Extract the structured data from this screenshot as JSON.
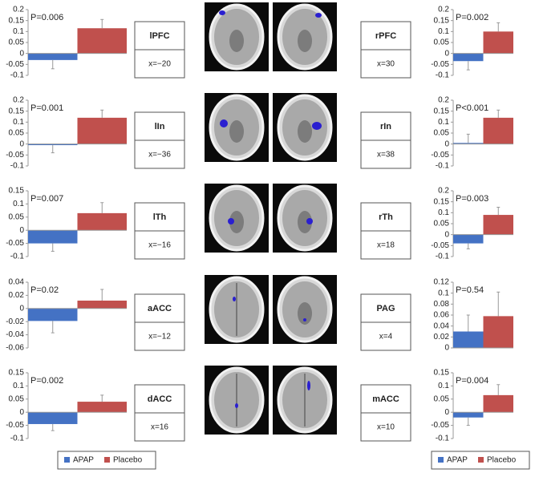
{
  "legend": [
    {
      "name": "APAP",
      "color": "#4472c4"
    },
    {
      "name": "Placebo",
      "color": "#c0504d"
    }
  ],
  "chart_data": [
    {
      "type": "bar",
      "annotation": "P=0.006",
      "label": "lPFC",
      "coordinate": "x=−20",
      "ylim": [
        -0.1,
        0.2
      ],
      "yticks": [
        0.2,
        0.15,
        0.1,
        0.05,
        0,
        -0.05,
        -0.1
      ],
      "series": [
        {
          "color": "#4472c4",
          "values": [
            -0.03
          ],
          "errors": [
            0.04
          ]
        },
        {
          "color": "#c0504d",
          "values": [
            0.115
          ],
          "errors": [
            0.04
          ]
        }
      ]
    },
    {
      "type": "bar",
      "annotation": "P=0.001",
      "label": "lIn",
      "coordinate": "x=−36",
      "ylim": [
        -0.1,
        0.2
      ],
      "yticks": [
        0.2,
        0.15,
        0.1,
        0.05,
        0,
        -0.05,
        -0.1
      ],
      "series": [
        {
          "color": "#4472c4",
          "values": [
            -0.005
          ],
          "errors": [
            0.035
          ]
        },
        {
          "color": "#c0504d",
          "values": [
            0.12
          ],
          "errors": [
            0.035
          ]
        }
      ]
    },
    {
      "type": "bar",
      "annotation": "P=0.007",
      "label": "lTh",
      "coordinate": "x=−16",
      "ylim": [
        -0.1,
        0.15
      ],
      "yticks": [
        0.15,
        0.1,
        0.05,
        0,
        -0.05,
        -0.1
      ],
      "series": [
        {
          "color": "#4472c4",
          "values": [
            -0.05
          ],
          "errors": [
            0.03
          ]
        },
        {
          "color": "#c0504d",
          "values": [
            0.065
          ],
          "errors": [
            0.04
          ]
        }
      ]
    },
    {
      "type": "bar",
      "annotation": "P=0.02",
      "label": "aACC",
      "coordinate": "x=−12",
      "ylim": [
        -0.06,
        0.04
      ],
      "yticks": [
        0.04,
        0.02,
        0,
        -0.02,
        -0.04,
        -0.06
      ],
      "series": [
        {
          "color": "#4472c4",
          "values": [
            -0.019
          ],
          "errors": [
            0.018
          ]
        },
        {
          "color": "#c0504d",
          "values": [
            0.012
          ],
          "errors": [
            0.017
          ]
        }
      ]
    },
    {
      "type": "bar",
      "annotation": "P=0.002",
      "label": "dACC",
      "coordinate": "x=16",
      "ylim": [
        -0.1,
        0.15
      ],
      "yticks": [
        0.15,
        0.1,
        0.05,
        0,
        -0.05,
        -0.1
      ],
      "series": [
        {
          "color": "#4472c4",
          "values": [
            -0.045
          ],
          "errors": [
            0.025
          ]
        },
        {
          "color": "#c0504d",
          "values": [
            0.04
          ],
          "errors": [
            0.025
          ]
        }
      ]
    },
    {
      "type": "bar",
      "annotation": "P=0.002",
      "label": "rPFC",
      "coordinate": "x=30",
      "ylim": [
        -0.1,
        0.2
      ],
      "yticks": [
        0.2,
        0.15,
        0.1,
        0.05,
        0,
        -0.05,
        -0.1
      ],
      "series": [
        {
          "color": "#4472c4",
          "values": [
            -0.035
          ],
          "errors": [
            0.04
          ]
        },
        {
          "color": "#c0504d",
          "values": [
            0.1
          ],
          "errors": [
            0.04
          ]
        }
      ]
    },
    {
      "type": "bar",
      "annotation": "P<0.001",
      "label": "rIn",
      "coordinate": "x=38",
      "ylim": [
        -0.1,
        0.2
      ],
      "yticks": [
        0.2,
        0.15,
        0.1,
        0.05,
        0,
        -0.05,
        -0.1
      ],
      "series": [
        {
          "color": "#4472c4",
          "values": [
            0.005
          ],
          "errors": [
            0.04
          ]
        },
        {
          "color": "#c0504d",
          "values": [
            0.12
          ],
          "errors": [
            0.035
          ]
        }
      ]
    },
    {
      "type": "bar",
      "annotation": "P=0.003",
      "label": "rTh",
      "coordinate": "x=18",
      "ylim": [
        -0.1,
        0.2
      ],
      "yticks": [
        0.2,
        0.15,
        0.1,
        0.05,
        0,
        -0.05,
        -0.1
      ],
      "series": [
        {
          "color": "#4472c4",
          "values": [
            -0.04
          ],
          "errors": [
            0.025
          ]
        },
        {
          "color": "#c0504d",
          "values": [
            0.09
          ],
          "errors": [
            0.035
          ]
        }
      ]
    },
    {
      "type": "bar",
      "annotation": "P=0.54",
      "label": "PAG",
      "coordinate": "x=4",
      "ylim": [
        0,
        0.12
      ],
      "yticks": [
        0.12,
        0.1,
        0.08,
        0.06,
        0.04,
        0.02,
        0
      ],
      "series": [
        {
          "color": "#4472c4",
          "values": [
            0.03
          ],
          "errors": [
            0.03
          ]
        },
        {
          "color": "#c0504d",
          "values": [
            0.058
          ],
          "errors": [
            0.044
          ]
        }
      ]
    },
    {
      "type": "bar",
      "annotation": "P=0.004",
      "label": "mACC",
      "coordinate": "x=10",
      "ylim": [
        -0.1,
        0.15
      ],
      "yticks": [
        0.15,
        0.1,
        0.05,
        0,
        -0.05,
        -0.1
      ],
      "series": [
        {
          "color": "#4472c4",
          "values": [
            -0.02
          ],
          "errors": [
            0.03
          ]
        },
        {
          "color": "#c0504d",
          "values": [
            0.065
          ],
          "errors": [
            0.04
          ]
        }
      ]
    }
  ]
}
